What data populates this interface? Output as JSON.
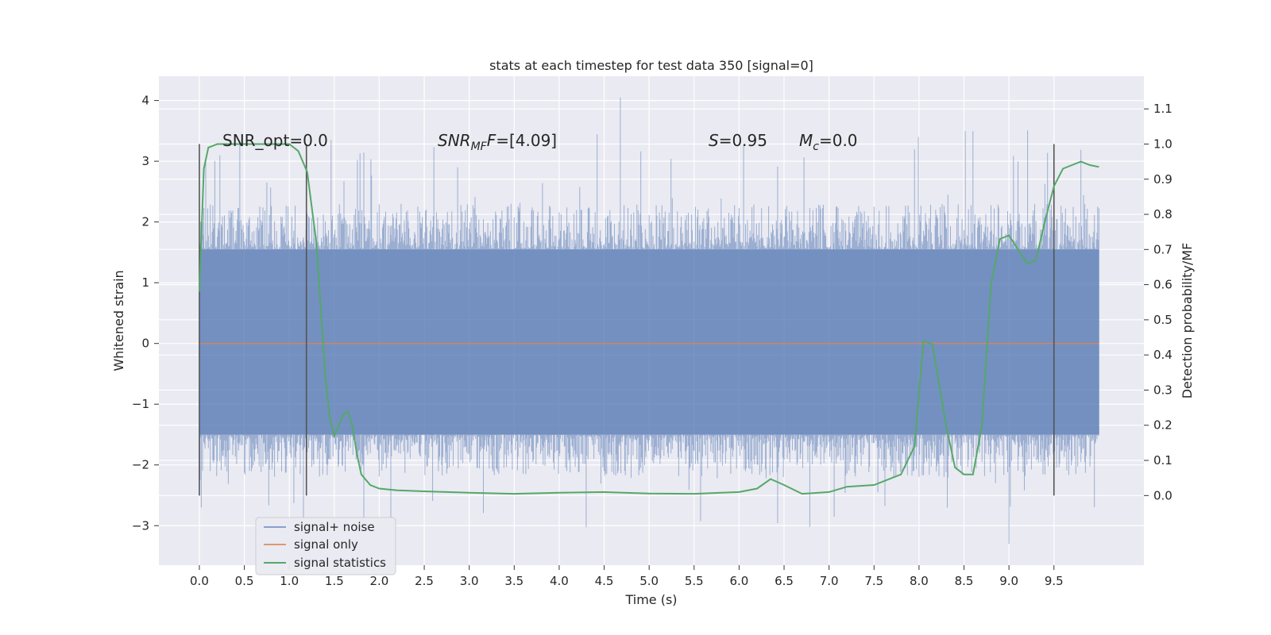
{
  "chart_data": {
    "type": "line",
    "title": "stats at each timestep for test data 350 [signal=0]",
    "xlabel": "Time (s)",
    "ylabel_left": "Whitened strain",
    "ylabel_right": "Detection probability/MF",
    "xlim": [
      -0.45,
      10.5
    ],
    "ylim_left": [
      -3.65,
      4.4
    ],
    "ylim_right": [
      -0.198,
      1.193
    ],
    "x_ticks": [
      "0.0",
      "0.5",
      "1.0",
      "1.5",
      "2.0",
      "2.5",
      "3.0",
      "3.5",
      "4.0",
      "4.5",
      "5.0",
      "5.5",
      "6.0",
      "6.5",
      "7.0",
      "7.5",
      "8.0",
      "8.5",
      "9.0",
      "9.5"
    ],
    "y_ticks_left": [
      "4",
      "3",
      "2",
      "1",
      "0",
      "−1",
      "−2",
      "−3"
    ],
    "y_ticks_right": [
      "1.1",
      "1.0",
      "0.9",
      "0.8",
      "0.7",
      "0.6",
      "0.5",
      "0.4",
      "0.3",
      "0.2",
      "0.1",
      "0.0"
    ],
    "grid": true,
    "legend_position": "lower-left",
    "colors": {
      "background": "#eaeaf2",
      "grid": "#ffffff",
      "noise": "#4c72b0",
      "signal": "#dd8452",
      "statistics": "#55a868",
      "markers": "#555555"
    },
    "annotations": {
      "snr_opt": "SNR_opt=0.0",
      "snr_mf_base": "SNR",
      "snr_mf_sub": "MF",
      "snr_mf_value": "=[4.09]",
      "s_italic": "S",
      "s_value": "=0.95",
      "mc_base": "M",
      "mc_sub": "c",
      "mc_value": "=0.0"
    },
    "vertical_markers_x": [
      0.0,
      1.19,
      9.5
    ],
    "series": [
      {
        "name": "signal+ noise",
        "style": "noise-band",
        "x_range": [
          0.0,
          10.0
        ],
        "band": [
          -1.5,
          1.55
        ],
        "typical_extent": [
          -2.2,
          2.3
        ],
        "max": 4.05,
        "min": -3.3
      },
      {
        "name": "signal only",
        "x": [
          0.0,
          10.0
        ],
        "values": [
          0.0,
          0.0
        ]
      },
      {
        "name": "signal statistics",
        "axis": "right",
        "x": [
          0.0,
          0.05,
          0.1,
          0.2,
          0.3,
          0.5,
          0.8,
          1.0,
          1.1,
          1.2,
          1.3,
          1.4,
          1.45,
          1.5,
          1.55,
          1.6,
          1.65,
          1.7,
          1.75,
          1.8,
          1.9,
          2.0,
          2.2,
          2.5,
          3.0,
          3.5,
          4.0,
          4.5,
          5.0,
          5.5,
          6.0,
          6.2,
          6.35,
          6.5,
          6.7,
          7.0,
          7.2,
          7.5,
          7.8,
          7.95,
          8.05,
          8.15,
          8.3,
          8.4,
          8.5,
          8.6,
          8.7,
          8.8,
          8.9,
          9.0,
          9.1,
          9.2,
          9.3,
          9.4,
          9.5,
          9.6,
          9.7,
          9.8,
          9.9,
          10.0
        ],
        "values": [
          0.58,
          0.93,
          0.99,
          1.0,
          1.0,
          1.0,
          1.0,
          1.0,
          0.98,
          0.92,
          0.72,
          0.34,
          0.22,
          0.17,
          0.2,
          0.23,
          0.24,
          0.2,
          0.12,
          0.06,
          0.03,
          0.02,
          0.015,
          0.012,
          0.008,
          0.005,
          0.008,
          0.01,
          0.006,
          0.005,
          0.01,
          0.02,
          0.047,
          0.03,
          0.005,
          0.01,
          0.025,
          0.03,
          0.06,
          0.14,
          0.44,
          0.43,
          0.2,
          0.08,
          0.06,
          0.06,
          0.2,
          0.6,
          0.73,
          0.74,
          0.7,
          0.66,
          0.67,
          0.78,
          0.88,
          0.93,
          0.94,
          0.95,
          0.94,
          0.935
        ]
      }
    ]
  }
}
